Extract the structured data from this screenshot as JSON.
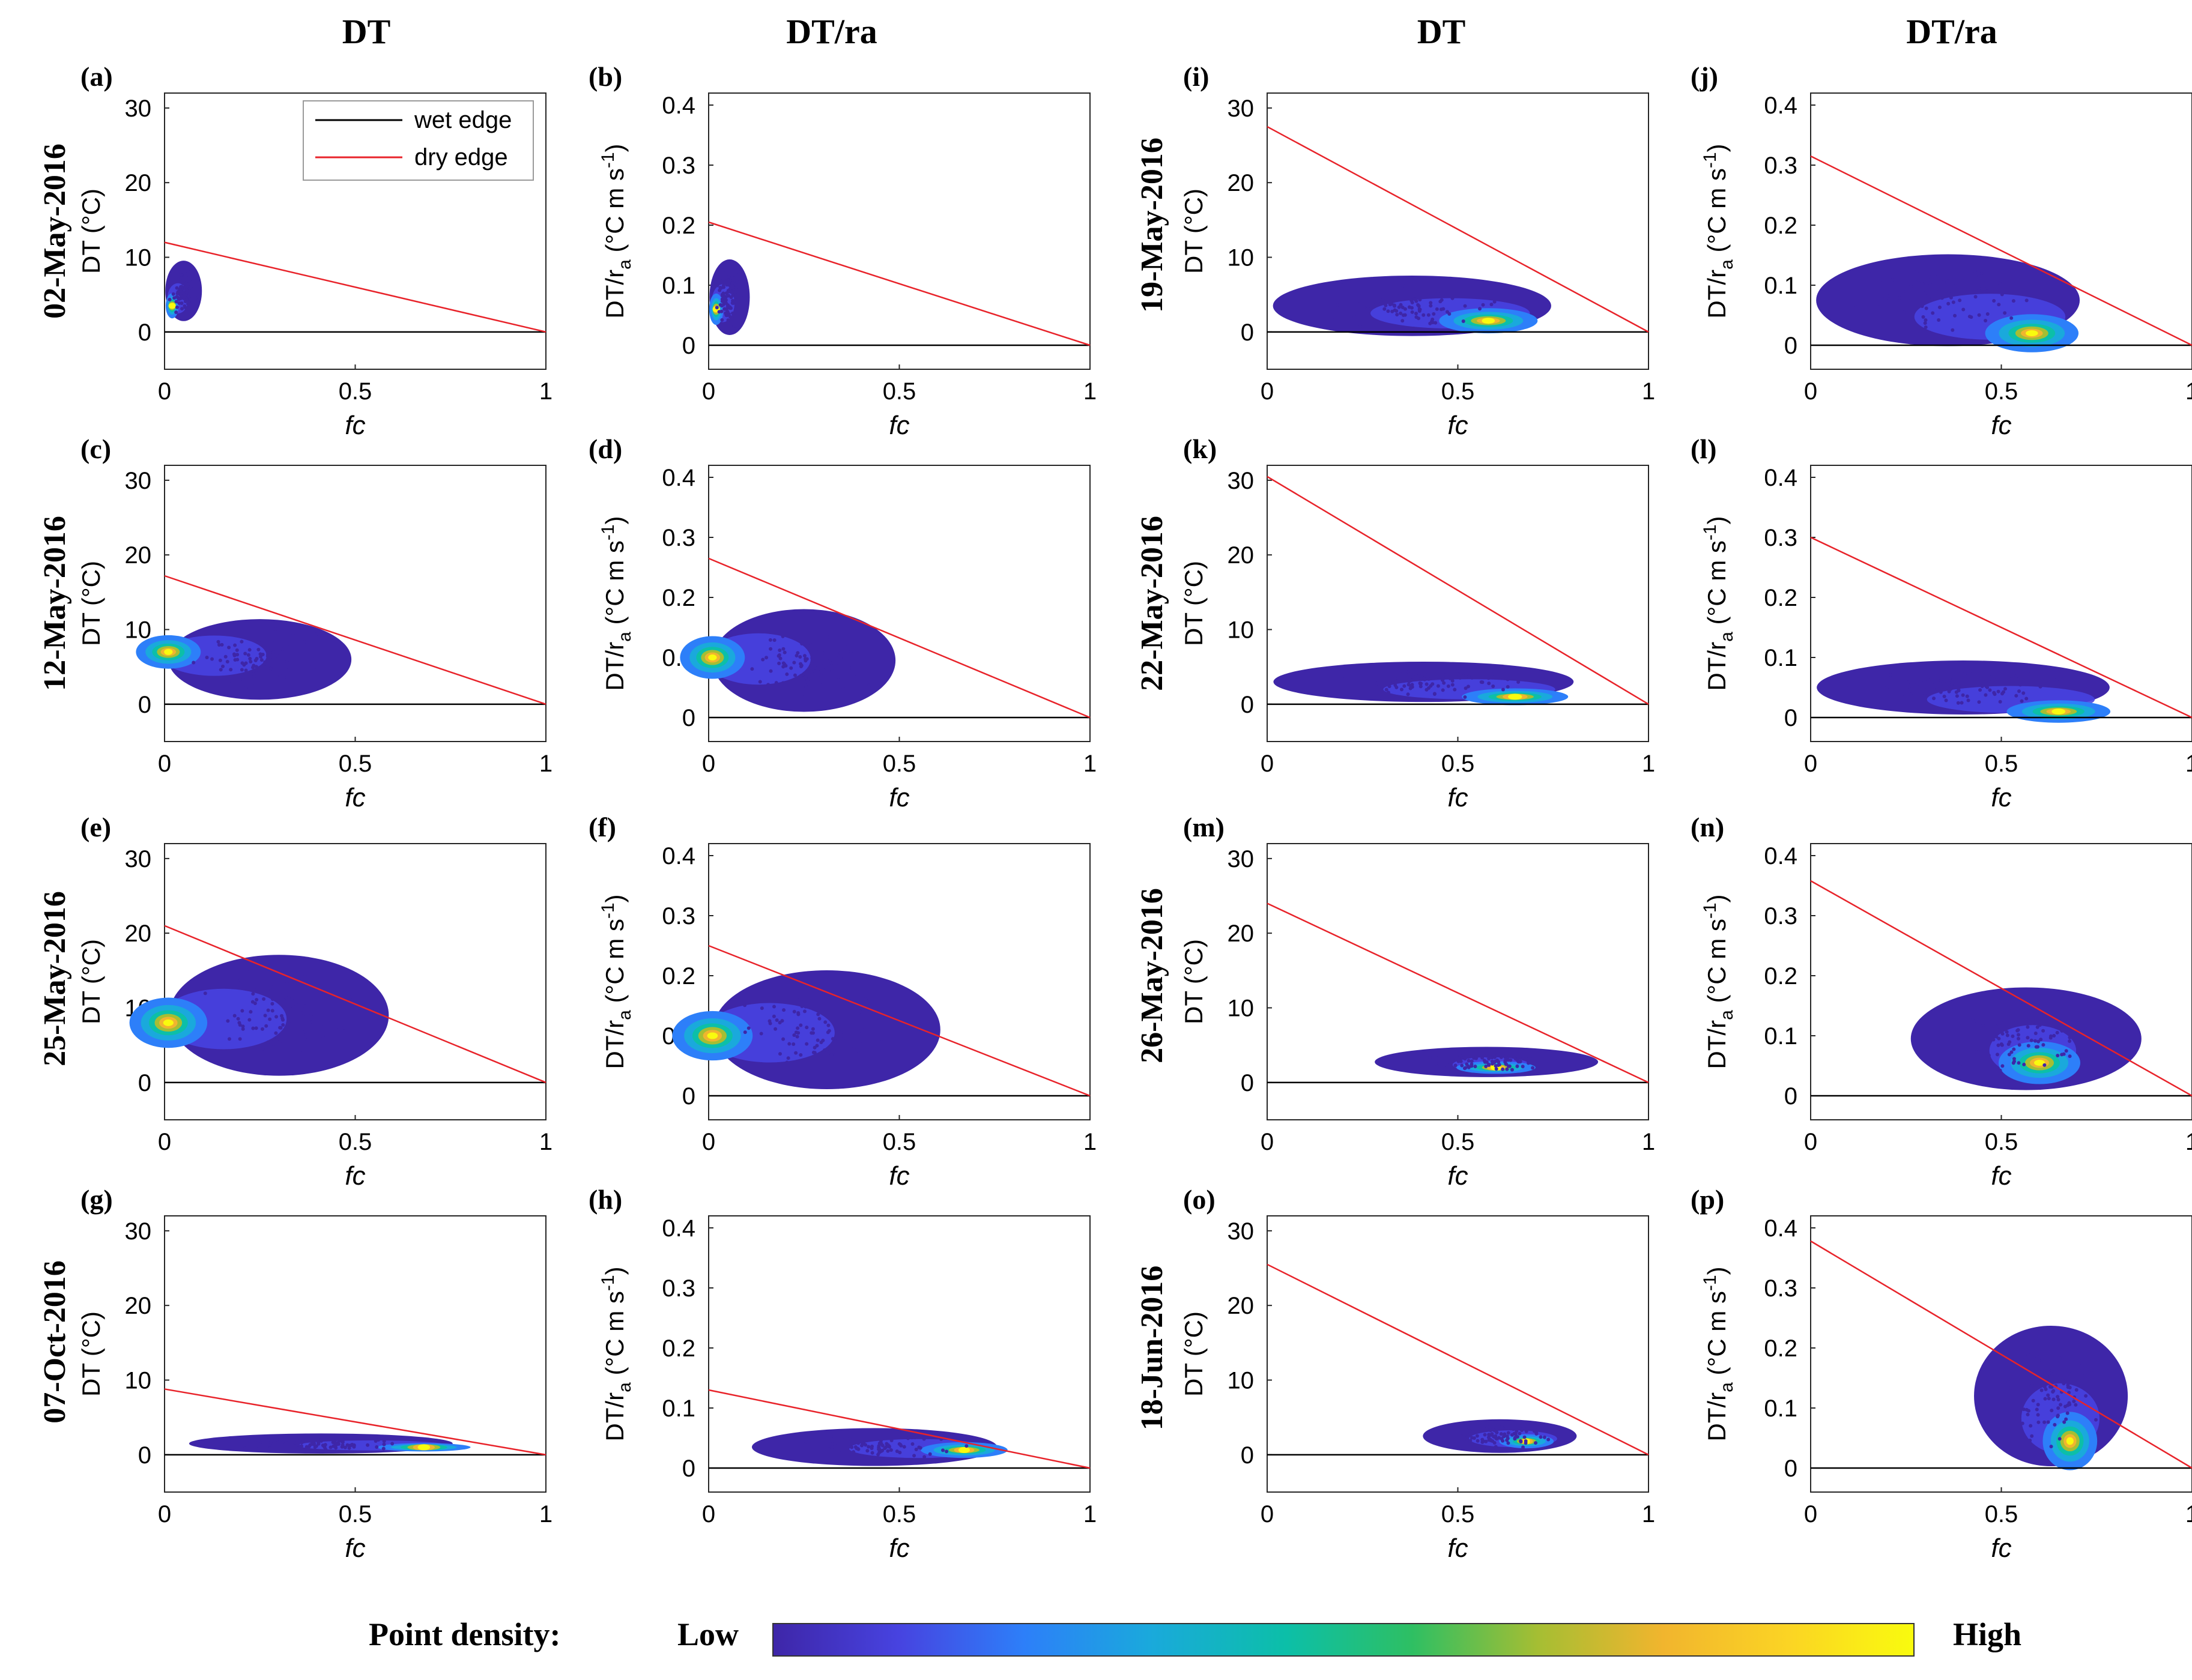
{
  "figure": {
    "column_headers": [
      "DT",
      "DT/ra",
      "DT",
      "DT/ra"
    ],
    "dates": [
      "02-May-2016",
      "12-May-2016",
      "25-May-2016",
      "07-Oct-2016",
      "19-May-2016",
      "22-May-2016",
      "26-May-2016",
      "18-Jun-2016"
    ],
    "legend": {
      "wet": "wet edge",
      "dry": "dry edge"
    },
    "colorbar": {
      "label": "Point density:",
      "low": "Low",
      "high": "High",
      "colors": [
        "#3e26a8",
        "#4743e0",
        "#2d7ff9",
        "#1aa9dc",
        "#0cbfa8",
        "#2ebf63",
        "#a5be33",
        "#f1b52e",
        "#fbd424",
        "#f9fb0e"
      ]
    },
    "colors": {
      "wet_edge": "#000000",
      "dry_edge": "#e8232a",
      "density_low": "#3e26a8",
      "density_high": "#f9fb0e"
    }
  },
  "chart_data": [
    {
      "panel": "(a)",
      "type": "scatter",
      "ylabel": "DT (°C)",
      "xlabel": "fc",
      "xlim": [
        0,
        1
      ],
      "ylim": [
        -5,
        32
      ],
      "xticks": [
        "0",
        "0.5",
        "1"
      ],
      "yticks": [
        "0",
        "10",
        "20",
        "30"
      ],
      "dry_edge": [
        [
          0,
          12
        ],
        [
          1,
          0
        ]
      ],
      "wet_edge": [
        [
          0,
          0
        ],
        [
          1,
          0
        ]
      ],
      "cloud": {
        "xmin": 0,
        "xmax": 0.1,
        "ymin": 1,
        "ymax": 10,
        "core_x": 0.02,
        "core_y": 3.5
      }
    },
    {
      "panel": "(b)",
      "type": "scatter",
      "ylabel": "DT/ra (°C m s-1)",
      "xlabel": "fc",
      "xlim": [
        0,
        1
      ],
      "ylim": [
        -0.04,
        0.42
      ],
      "xticks": [
        "0",
        "0.5",
        "1"
      ],
      "yticks": [
        "0",
        "0.1",
        "0.2",
        "0.3",
        "0.4"
      ],
      "dry_edge": [
        [
          0,
          0.205
        ],
        [
          1,
          0
        ]
      ],
      "wet_edge": [
        [
          0,
          0
        ],
        [
          1,
          0
        ]
      ],
      "cloud": {
        "xmin": 0,
        "xmax": 0.11,
        "ymin": 0.01,
        "ymax": 0.15,
        "core_x": 0.02,
        "core_y": 0.06
      }
    },
    {
      "panel": "(c)",
      "type": "scatter",
      "ylabel": "DT (°C)",
      "xlabel": "fc",
      "xlim": [
        0,
        1
      ],
      "ylim": [
        -5,
        32
      ],
      "xticks": [
        "0",
        "0.5",
        "1"
      ],
      "yticks": [
        "0",
        "10",
        "20",
        "30"
      ],
      "dry_edge": [
        [
          0,
          17.2
        ],
        [
          1,
          0
        ]
      ],
      "wet_edge": [
        [
          0,
          0
        ],
        [
          1,
          0
        ]
      ],
      "cloud": {
        "xmin": 0,
        "xmax": 0.5,
        "ymin": 0,
        "ymax": 12,
        "core_x": 0.01,
        "core_y": 7
      }
    },
    {
      "panel": "(d)",
      "type": "scatter",
      "ylabel": "DT/ra (°C m s-1)",
      "xlabel": "fc",
      "xlim": [
        0,
        1
      ],
      "ylim": [
        -0.04,
        0.42
      ],
      "xticks": [
        "0",
        "0.5",
        "1"
      ],
      "yticks": [
        "0",
        "0.1",
        "0.2",
        "0.3",
        "0.4"
      ],
      "dry_edge": [
        [
          0,
          0.265
        ],
        [
          1,
          0
        ]
      ],
      "wet_edge": [
        [
          0,
          0
        ],
        [
          1,
          0
        ]
      ],
      "cloud": {
        "xmin": 0,
        "xmax": 0.5,
        "ymin": 0,
        "ymax": 0.19,
        "core_x": 0.01,
        "core_y": 0.1
      }
    },
    {
      "panel": "(e)",
      "type": "scatter",
      "ylabel": "DT (°C)",
      "xlabel": "fc",
      "xlim": [
        0,
        1
      ],
      "ylim": [
        -5,
        32
      ],
      "xticks": [
        "0",
        "0.5",
        "1"
      ],
      "yticks": [
        "0",
        "10",
        "20",
        "30"
      ],
      "dry_edge": [
        [
          0,
          21
        ],
        [
          1,
          0
        ]
      ],
      "wet_edge": [
        [
          0,
          0
        ],
        [
          1,
          0
        ]
      ],
      "cloud": {
        "xmin": 0,
        "xmax": 0.6,
        "ymin": 0,
        "ymax": 18,
        "core_x": 0.01,
        "core_y": 8
      }
    },
    {
      "panel": "(f)",
      "type": "scatter",
      "ylabel": "DT/ra (°C m s-1)",
      "xlabel": "fc",
      "xlim": [
        0,
        1
      ],
      "ylim": [
        -0.04,
        0.42
      ],
      "xticks": [
        "0",
        "0.5",
        "1"
      ],
      "yticks": [
        "0",
        "0.1",
        "0.2",
        "0.3",
        "0.4"
      ],
      "dry_edge": [
        [
          0,
          0.25
        ],
        [
          1,
          0
        ]
      ],
      "wet_edge": [
        [
          0,
          0
        ],
        [
          1,
          0
        ]
      ],
      "cloud": {
        "xmin": 0,
        "xmax": 0.62,
        "ymin": 0,
        "ymax": 0.22,
        "core_x": 0.01,
        "core_y": 0.1
      }
    },
    {
      "panel": "(g)",
      "type": "scatter",
      "ylabel": "DT (°C)",
      "xlabel": "fc",
      "xlim": [
        0,
        1
      ],
      "ylim": [
        -5,
        32
      ],
      "xticks": [
        "0",
        "0.5",
        "1"
      ],
      "yticks": [
        "0",
        "10",
        "20",
        "30"
      ],
      "dry_edge": [
        [
          0,
          8.8
        ],
        [
          1,
          0
        ]
      ],
      "wet_edge": [
        [
          0,
          0
        ],
        [
          1,
          0
        ]
      ],
      "cloud": {
        "xmin": 0.05,
        "xmax": 0.77,
        "ymin": 0,
        "ymax": 3,
        "core_x": 0.68,
        "core_y": 1
      }
    },
    {
      "panel": "(h)",
      "type": "scatter",
      "ylabel": "DT/ra (°C m s-1)",
      "xlabel": "fc",
      "xlim": [
        0,
        1
      ],
      "ylim": [
        -0.04,
        0.42
      ],
      "xticks": [
        "0",
        "0.5",
        "1"
      ],
      "yticks": [
        "0",
        "0.1",
        "0.2",
        "0.3",
        "0.4"
      ],
      "dry_edge": [
        [
          0,
          0.13
        ],
        [
          1,
          0
        ]
      ],
      "wet_edge": [
        [
          0,
          0
        ],
        [
          1,
          0
        ]
      ],
      "cloud": {
        "xmin": 0.1,
        "xmax": 0.77,
        "ymin": 0,
        "ymax": 0.07,
        "core_x": 0.67,
        "core_y": 0.03
      }
    },
    {
      "panel": "(i)",
      "type": "scatter",
      "ylabel": "DT (°C)",
      "xlabel": "fc",
      "xlim": [
        0,
        1
      ],
      "ylim": [
        -5,
        32
      ],
      "xticks": [
        "0",
        "0.5",
        "1"
      ],
      "yticks": [
        "0",
        "10",
        "20",
        "30"
      ],
      "dry_edge": [
        [
          0,
          27.5
        ],
        [
          1,
          0
        ]
      ],
      "wet_edge": [
        [
          0,
          0
        ],
        [
          1,
          0
        ]
      ],
      "cloud": {
        "xmin": 0,
        "xmax": 0.76,
        "ymin": -1,
        "ymax": 8,
        "core_x": 0.58,
        "core_y": 1.5
      }
    },
    {
      "panel": "(j)",
      "type": "scatter",
      "ylabel": "DT/ra (°C m s-1)",
      "xlabel": "fc",
      "xlim": [
        0,
        1
      ],
      "ylim": [
        -0.04,
        0.42
      ],
      "xticks": [
        "0",
        "0.5",
        "1"
      ],
      "yticks": [
        "0",
        "0.1",
        "0.2",
        "0.3",
        "0.4"
      ],
      "dry_edge": [
        [
          0,
          0.315
        ],
        [
          1,
          0
        ]
      ],
      "wet_edge": [
        [
          0,
          0
        ],
        [
          1,
          0
        ]
      ],
      "cloud": {
        "xmin": 0,
        "xmax": 0.72,
        "ymin": -0.01,
        "ymax": 0.16,
        "core_x": 0.58,
        "core_y": 0.02
      }
    },
    {
      "panel": "(k)",
      "type": "scatter",
      "ylabel": "DT (°C)",
      "xlabel": "fc",
      "xlim": [
        0,
        1
      ],
      "ylim": [
        -5,
        32
      ],
      "xticks": [
        "0",
        "0.5",
        "1"
      ],
      "yticks": [
        "0",
        "10",
        "20",
        "30"
      ],
      "dry_edge": [
        [
          0,
          30.5
        ],
        [
          1,
          0
        ]
      ],
      "wet_edge": [
        [
          0,
          0
        ],
        [
          1,
          0
        ]
      ],
      "cloud": {
        "xmin": 0,
        "xmax": 0.82,
        "ymin": 0,
        "ymax": 6,
        "core_x": 0.65,
        "core_y": 1
      }
    },
    {
      "panel": "(l)",
      "type": "scatter",
      "ylabel": "DT/ra (°C m s-1)",
      "xlabel": "fc",
      "xlim": [
        0,
        1
      ],
      "ylim": [
        -0.04,
        0.42
      ],
      "xticks": [
        "0",
        "0.5",
        "1"
      ],
      "yticks": [
        "0",
        "0.1",
        "0.2",
        "0.3",
        "0.4"
      ],
      "dry_edge": [
        [
          0,
          0.3
        ],
        [
          1,
          0
        ]
      ],
      "wet_edge": [
        [
          0,
          0
        ],
        [
          1,
          0
        ]
      ],
      "cloud": {
        "xmin": 0,
        "xmax": 0.8,
        "ymin": 0,
        "ymax": 0.1,
        "core_x": 0.65,
        "core_y": 0.01
      }
    },
    {
      "panel": "(m)",
      "type": "scatter",
      "ylabel": "DT (°C)",
      "xlabel": "fc",
      "xlim": [
        0,
        1
      ],
      "ylim": [
        -5,
        32
      ],
      "xticks": [
        "0",
        "0.5",
        "1"
      ],
      "yticks": [
        "0",
        "10",
        "20",
        "30"
      ],
      "dry_edge": [
        [
          0,
          24
        ],
        [
          1,
          0
        ]
      ],
      "wet_edge": [
        [
          0,
          0
        ],
        [
          1,
          0
        ]
      ],
      "cloud": {
        "xmin": 0.27,
        "xmax": 0.88,
        "ymin": 0.5,
        "ymax": 5,
        "core_x": 0.6,
        "core_y": 2
      }
    },
    {
      "panel": "(n)",
      "type": "scatter",
      "ylabel": "DT/ra (°C m s-1)",
      "xlabel": "fc",
      "xlim": [
        0,
        1
      ],
      "ylim": [
        -0.04,
        0.42
      ],
      "xticks": [
        "0",
        "0.5",
        "1"
      ],
      "yticks": [
        "0",
        "0.1",
        "0.2",
        "0.3",
        "0.4"
      ],
      "dry_edge": [
        [
          0,
          0.358
        ],
        [
          1,
          0
        ]
      ],
      "wet_edge": [
        [
          0,
          0
        ],
        [
          1,
          0
        ]
      ],
      "cloud": {
        "xmin": 0.25,
        "xmax": 0.88,
        "ymin": 0,
        "ymax": 0.19,
        "core_x": 0.6,
        "core_y": 0.055
      }
    },
    {
      "panel": "(o)",
      "type": "scatter",
      "ylabel": "DT (°C)",
      "xlabel": "fc",
      "xlim": [
        0,
        1
      ],
      "ylim": [
        -5,
        32
      ],
      "xticks": [
        "0",
        "0.5",
        "1"
      ],
      "yticks": [
        "0",
        "10",
        "20",
        "30"
      ],
      "dry_edge": [
        [
          0,
          25.5
        ],
        [
          1,
          0
        ]
      ],
      "wet_edge": [
        [
          0,
          0
        ],
        [
          1,
          0
        ]
      ],
      "cloud": {
        "xmin": 0.4,
        "xmax": 0.82,
        "ymin": 0,
        "ymax": 5,
        "core_x": 0.68,
        "core_y": 1.8
      }
    },
    {
      "panel": "(p)",
      "type": "scatter",
      "ylabel": "DT/ra (°C m s-1)",
      "xlabel": "fc",
      "xlim": [
        0,
        1
      ],
      "ylim": [
        -0.04,
        0.42
      ],
      "xticks": [
        "0",
        "0.5",
        "1"
      ],
      "yticks": [
        "0",
        "0.1",
        "0.2",
        "0.3",
        "0.4"
      ],
      "dry_edge": [
        [
          0,
          0.378
        ],
        [
          1,
          0
        ]
      ],
      "wet_edge": [
        [
          0,
          0
        ],
        [
          1,
          0
        ]
      ],
      "cloud": {
        "xmin": 0.42,
        "xmax": 0.84,
        "ymin": -0.01,
        "ymax": 0.25,
        "core_x": 0.68,
        "core_y": 0.045
      }
    }
  ]
}
